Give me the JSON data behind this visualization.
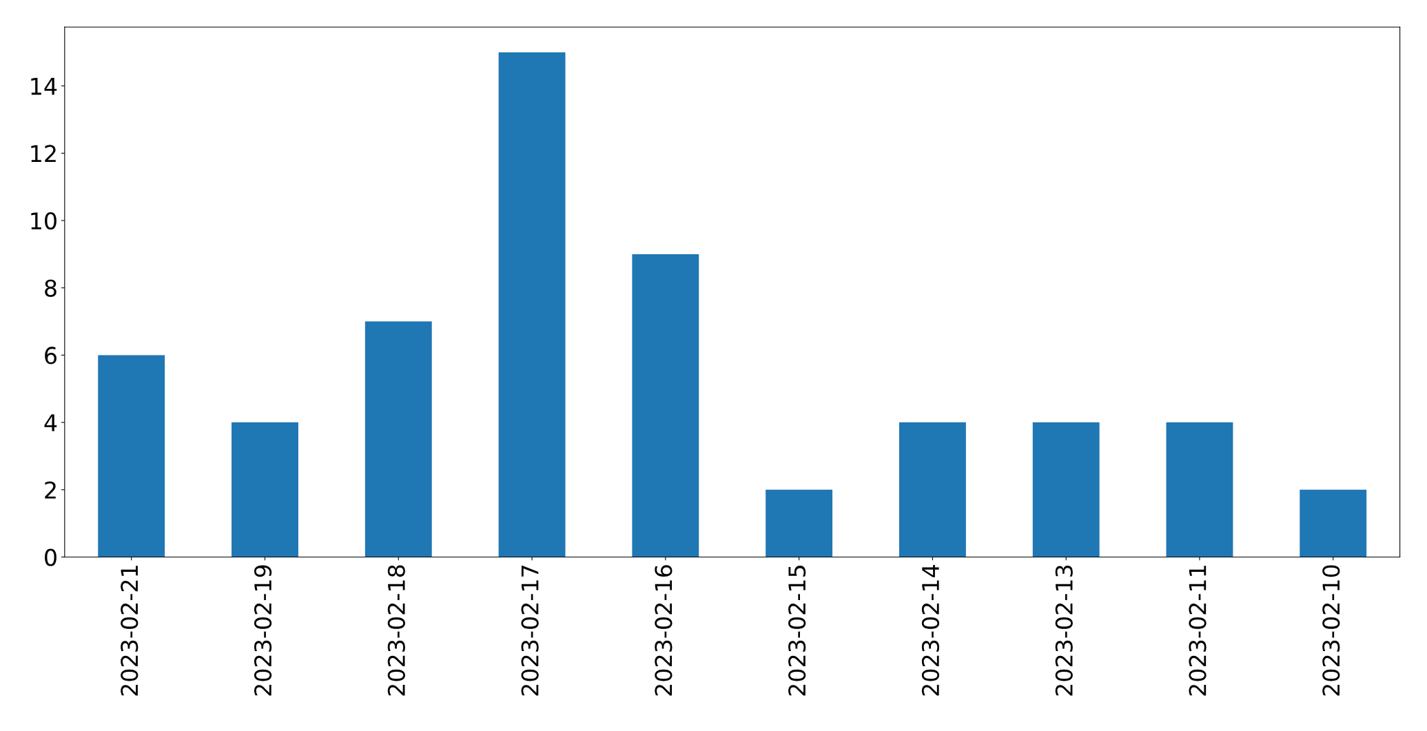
{
  "chart_data": {
    "type": "bar",
    "categories": [
      "2023-02-21",
      "2023-02-19",
      "2023-02-18",
      "2023-02-17",
      "2023-02-16",
      "2023-02-15",
      "2023-02-14",
      "2023-02-13",
      "2023-02-11",
      "2023-02-10"
    ],
    "values": [
      6,
      4,
      7,
      15,
      9,
      2,
      4,
      4,
      4,
      2
    ],
    "color": "#1f77b4",
    "ylim": [
      0,
      15.75
    ],
    "yticks": [
      0,
      2,
      4,
      6,
      8,
      10,
      12,
      14
    ],
    "grid": false
  }
}
